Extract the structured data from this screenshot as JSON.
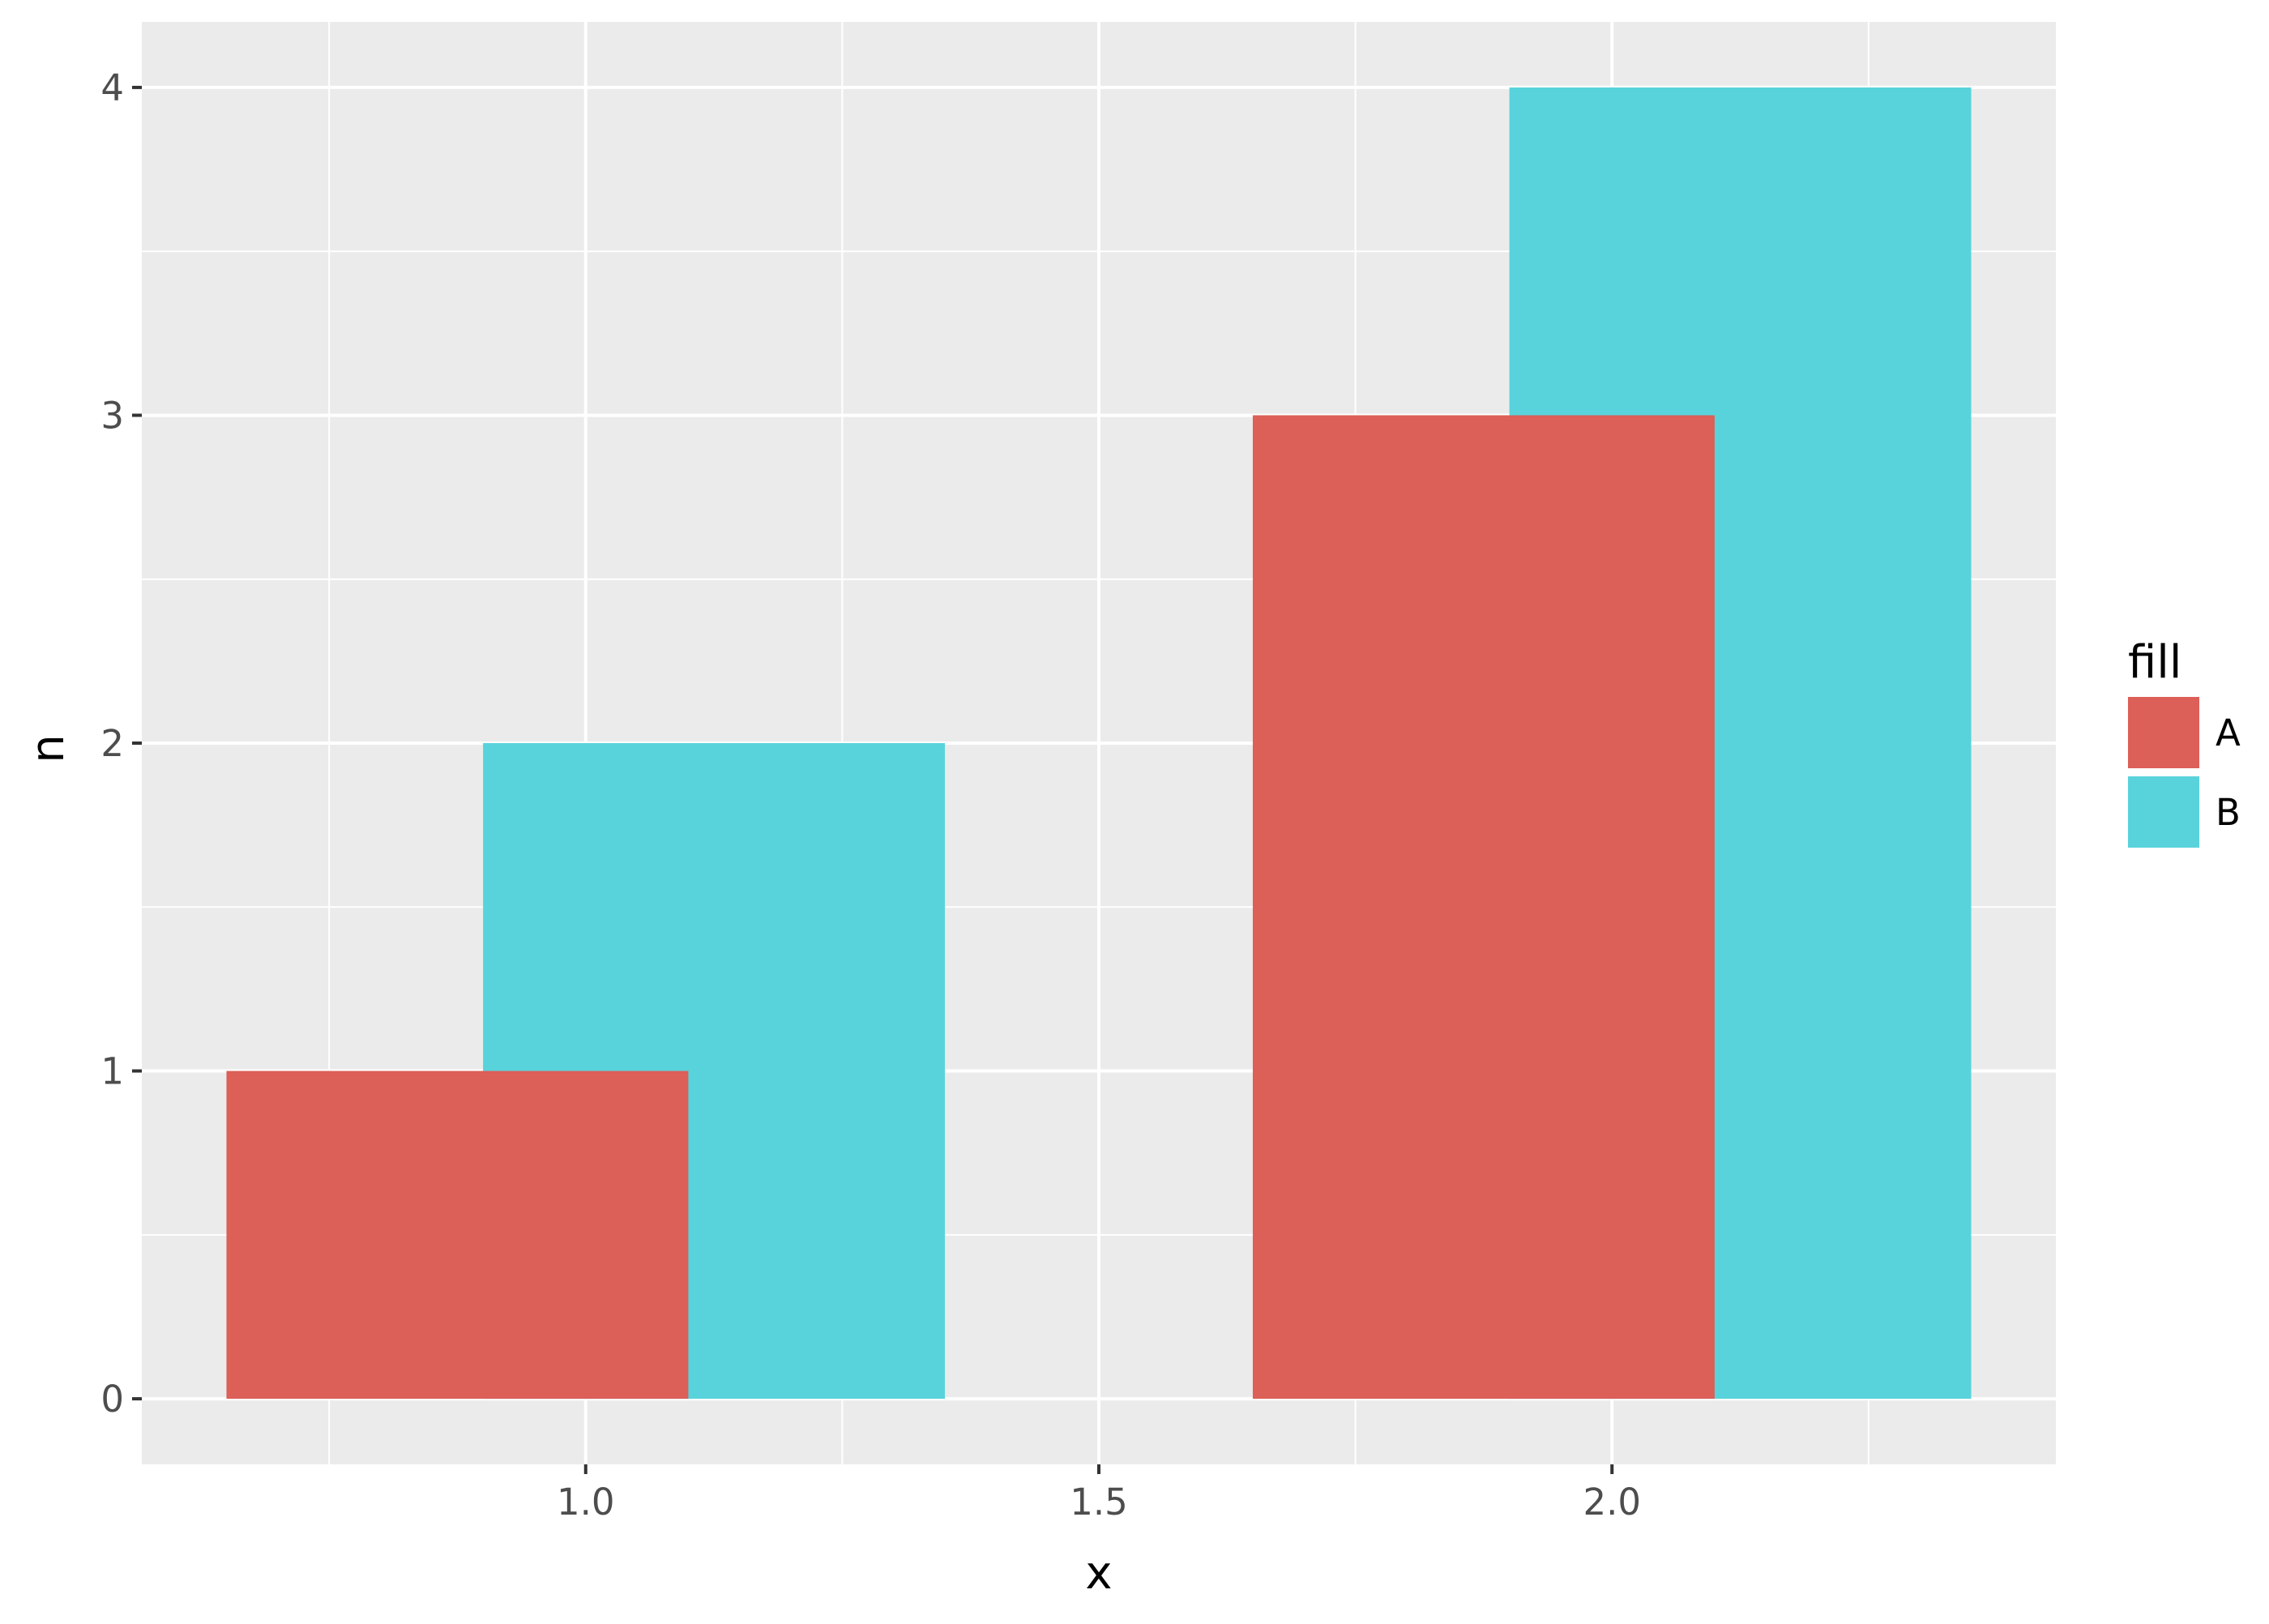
{
  "chart_data": {
    "type": "bar",
    "xlabel": "x",
    "ylabel": "n",
    "xlim": [
      0.5675,
      2.4325
    ],
    "ylim": [
      -0.2,
      4.2
    ],
    "xticks": [
      1.0,
      1.5,
      2.0
    ],
    "xtick_labels": [
      "1.0",
      "1.5",
      "2.0"
    ],
    "xminor": [
      0.75,
      1.25,
      1.75,
      2.25
    ],
    "yticks": [
      0,
      1,
      2,
      3,
      4
    ],
    "ytick_labels": [
      "0",
      "1",
      "2",
      "3",
      "4"
    ],
    "yminor": [
      0.5,
      1.5,
      2.5,
      3.5
    ],
    "bar_width": 0.45,
    "series": [
      {
        "name": "A",
        "color": "#dc5f58",
        "x": [
          0.875,
          1.875
        ],
        "values": [
          1,
          3
        ]
      },
      {
        "name": "B",
        "color": "#59d3db",
        "x": [
          1.125,
          2.125
        ],
        "values": [
          2,
          4
        ]
      }
    ],
    "draw_order": [
      "B",
      "A"
    ],
    "legend": {
      "title": "fill",
      "position": "right",
      "entries": [
        "A",
        "B"
      ]
    },
    "grid": true,
    "panel_background": "#ebebeb",
    "grid_color": "#ffffff"
  }
}
